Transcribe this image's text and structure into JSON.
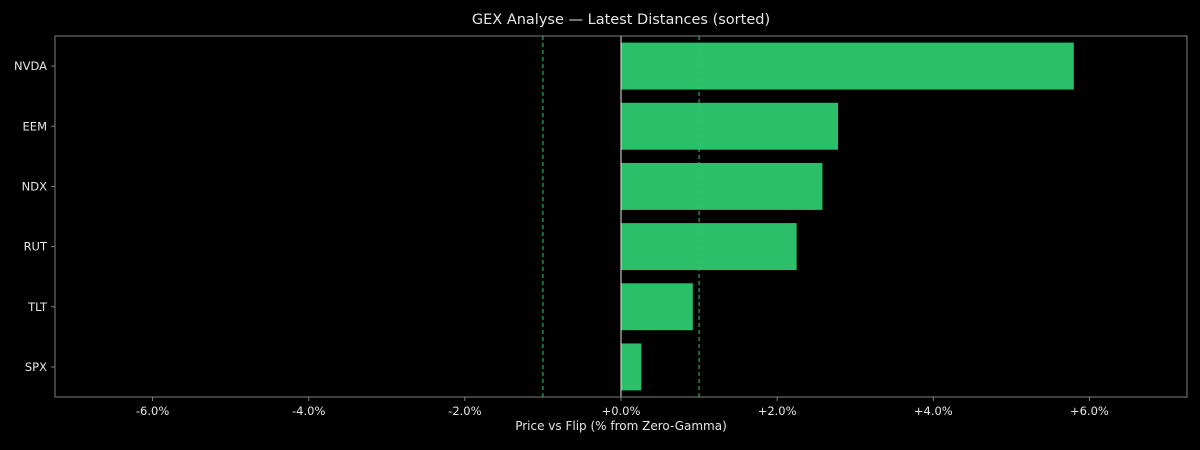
{
  "chart_data": {
    "type": "bar",
    "orientation": "horizontal",
    "title": "GEX Analyse — Latest Distances (sorted)",
    "xlabel": "Price vs Flip (% from Zero-Gamma)",
    "ylabel": "",
    "categories": [
      "NVDA",
      "EEM",
      "NDX",
      "RUT",
      "TLT",
      "SPX"
    ],
    "values": [
      5.8,
      2.78,
      2.58,
      2.25,
      0.92,
      0.26
    ],
    "xlim": [
      -7.25,
      7.25
    ],
    "xticks": [
      -6,
      -4,
      -2,
      0,
      2,
      4,
      6
    ],
    "xtick_labels": [
      "-6.0%",
      "-4.0%",
      "-2.0%",
      "+0.0%",
      "+2.0%",
      "+4.0%",
      "+6.0%"
    ],
    "reference_lines": [
      {
        "x": -1.0,
        "style": "dashed"
      },
      {
        "x": 1.0,
        "style": "dashed"
      },
      {
        "x": 0.0,
        "style": "solid"
      }
    ],
    "grid": false,
    "legend": "none",
    "colors": {
      "bar": "#2bbf6a",
      "background": "#000000",
      "axes": "#808080",
      "text": "#e6e6e6",
      "reference_dashed": "#2ecc71",
      "reference_zero": "#e6e6e6"
    }
  }
}
